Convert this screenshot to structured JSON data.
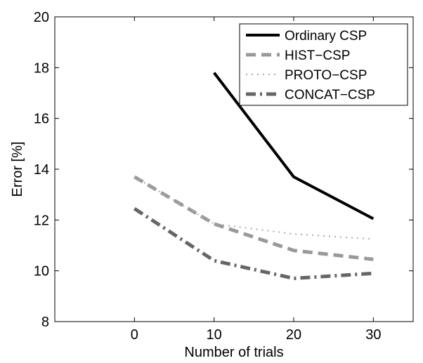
{
  "chart_data": {
    "type": "line",
    "x": [
      0,
      10,
      20,
      30
    ],
    "xlim": [
      -10,
      35
    ],
    "ylim": [
      8,
      20
    ],
    "xticks": [
      "0",
      "10",
      "20",
      "30"
    ],
    "yticks": [
      "8",
      "10",
      "12",
      "14",
      "16",
      "18",
      "20"
    ],
    "xlabel": "Number of trials",
    "ylabel": "Error [%]",
    "grid": false,
    "legend_position": "top-right",
    "series": [
      {
        "name": "Ordinary CSP",
        "color": "#000000",
        "style": "solid",
        "values": [
          null,
          17.8,
          13.7,
          12.05
        ]
      },
      {
        "name": "HIST−CSP",
        "color": "#999999",
        "style": "dashed",
        "values": [
          13.7,
          11.85,
          10.8,
          10.45
        ]
      },
      {
        "name": "PROTO−CSP",
        "color": "#aaaaaa",
        "style": "dotted",
        "values": [
          13.7,
          11.85,
          11.45,
          11.25
        ]
      },
      {
        "name": "CONCAT−CSP",
        "color": "#666666",
        "style": "dashdot",
        "values": [
          12.45,
          10.4,
          9.7,
          9.9
        ]
      }
    ]
  }
}
